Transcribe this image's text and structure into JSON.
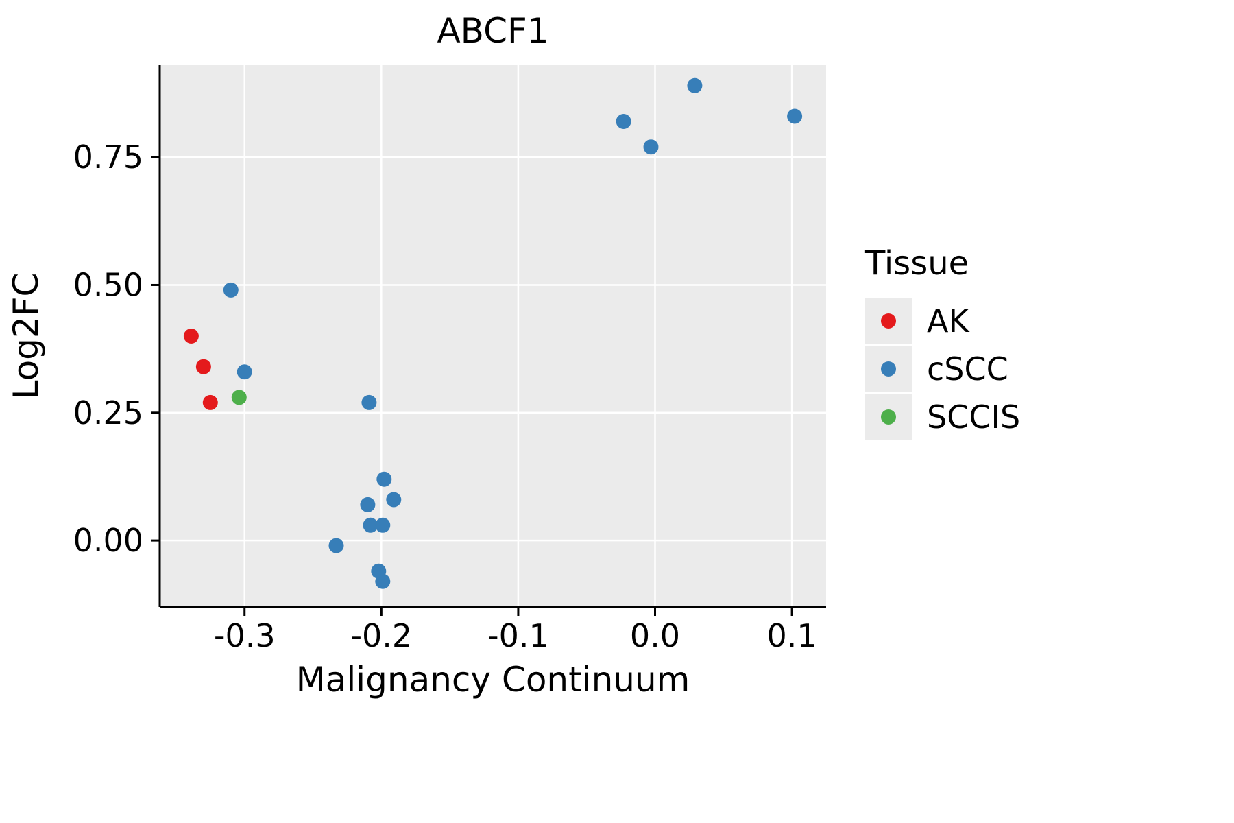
{
  "chart_data": {
    "type": "scatter",
    "title": "ABCF1",
    "xlabel": "Malignancy Continuum",
    "ylabel": "Log2FC",
    "legend_title": "Tissue",
    "xlim": [
      -0.362,
      0.125
    ],
    "ylim": [
      -0.13,
      0.93
    ],
    "xticks": {
      "values": [
        -0.3,
        -0.2,
        -0.1,
        0.0,
        0.1
      ],
      "labels": [
        "-0.3",
        "-0.2",
        "-0.1",
        "0.0",
        "0.1"
      ]
    },
    "yticks": {
      "values": [
        0.0,
        0.25,
        0.5,
        0.75
      ],
      "labels": [
        "0.00",
        "0.25",
        "0.50",
        "0.75"
      ]
    },
    "panel_bg": "#EBEBEB",
    "grid_color": "#FFFFFF",
    "axis_color": "#000000",
    "legend_position": "right",
    "grid": true,
    "series": [
      {
        "name": "AK",
        "color": "#E41A1C",
        "points": [
          [
            -0.339,
            0.4
          ],
          [
            -0.33,
            0.34
          ],
          [
            -0.325,
            0.27
          ]
        ]
      },
      {
        "name": "cSCC",
        "color": "#377EB8",
        "points": [
          [
            -0.31,
            0.49
          ],
          [
            -0.3,
            0.33
          ],
          [
            -0.209,
            0.27
          ],
          [
            -0.198,
            0.12
          ],
          [
            -0.191,
            0.08
          ],
          [
            -0.21,
            0.07
          ],
          [
            -0.208,
            0.03
          ],
          [
            -0.199,
            0.03
          ],
          [
            -0.233,
            -0.01
          ],
          [
            -0.202,
            -0.06
          ],
          [
            -0.199,
            -0.08
          ],
          [
            -0.023,
            0.82
          ],
          [
            -0.003,
            0.77
          ],
          [
            0.029,
            0.89
          ],
          [
            0.102,
            0.83
          ]
        ]
      },
      {
        "name": "SCCIS",
        "color": "#4DAF4A",
        "points": [
          [
            -0.304,
            0.28
          ]
        ]
      }
    ]
  }
}
